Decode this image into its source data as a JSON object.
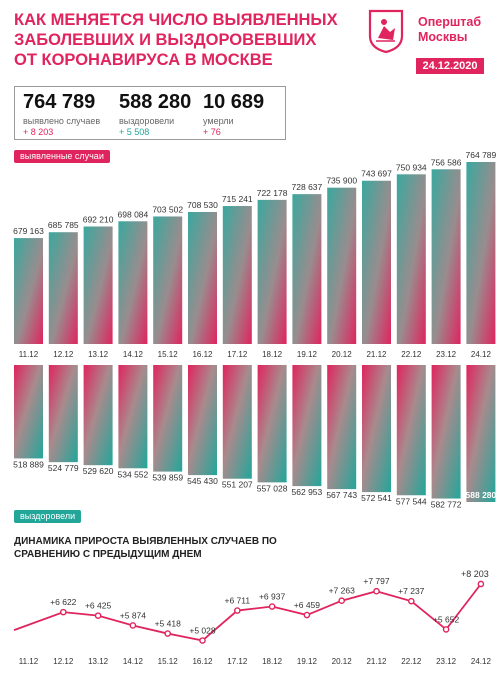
{
  "header": {
    "title_lines": [
      "Как меняется число выявленных",
      "заболевших и выздоровевших",
      "от коронавируса в Москве"
    ],
    "brand_lines": [
      "Оперштаб",
      "Москвы"
    ],
    "date": "24.12.2020",
    "logo_icon": "moscow-coat-of-arms-icon"
  },
  "stats": [
    {
      "value": "764 789",
      "label": "выявлено случаев",
      "delta": "+ 8 203",
      "color": "#e0245e"
    },
    {
      "value": "588 280",
      "label": "выздоровели",
      "delta": "+ 5 508",
      "color": "#22a69a"
    },
    {
      "value": "10 689",
      "label": "умерли",
      "delta": "+ 76",
      "color": "#e0245e"
    }
  ],
  "colors": {
    "accent_red": "#e0245e",
    "accent_teal": "#22a69a"
  },
  "chart_data": [
    {
      "type": "bar",
      "name": "выявленные случаи",
      "categories": [
        "11.12",
        "12.12",
        "13.12",
        "14.12",
        "15.12",
        "16.12",
        "17.12",
        "18.12",
        "19.12",
        "20.12",
        "21.12",
        "22.12",
        "23.12",
        "24.12"
      ],
      "values": [
        679163,
        685785,
        692210,
        698084,
        703502,
        708530,
        715241,
        722178,
        728637,
        735900,
        743697,
        750934,
        756586,
        764789
      ],
      "labels": [
        "679 163",
        "685 785",
        "692 210",
        "698 084",
        "703 502",
        "708 530",
        "715 241",
        "722 178",
        "728 637",
        "735 900",
        "743 697",
        "750 934",
        "756 586",
        "764 789"
      ]
    },
    {
      "type": "bar",
      "name": "выздоровели",
      "categories": [
        "11.12",
        "12.12",
        "13.12",
        "14.12",
        "15.12",
        "16.12",
        "17.12",
        "18.12",
        "19.12",
        "20.12",
        "21.12",
        "22.12",
        "23.12",
        "24.12"
      ],
      "values": [
        518889,
        524779,
        529620,
        534552,
        539859,
        545430,
        551207,
        557028,
        562953,
        567743,
        572541,
        577544,
        582772,
        588280
      ],
      "labels": [
        "518 889",
        "524 779",
        "529 620",
        "534 552",
        "539 859",
        "545 430",
        "551 207",
        "557 028",
        "562 953",
        "567 743",
        "572 541",
        "577 544",
        "582 772",
        "588 280"
      ]
    },
    {
      "type": "line",
      "title": "Динамика прироста выявленных случаев по сравнению с предыдущим днем",
      "categories": [
        "11.12",
        "12.12",
        "13.12",
        "14.12",
        "15.12",
        "16.12",
        "17.12",
        "18.12",
        "19.12",
        "20.12",
        "21.12",
        "22.12",
        "23.12",
        "24.12"
      ],
      "values": [
        null,
        6622,
        6425,
        5874,
        5418,
        5028,
        6711,
        6937,
        6459,
        7263,
        7797,
        7237,
        5652,
        8203
      ],
      "labels": [
        "",
        "+6 622",
        "+6 425",
        "+5 874",
        "+5 418",
        "+5 028",
        "+6 711",
        "+6 937",
        "+6 459",
        "+7 263",
        "+7 797",
        "+7 237",
        "+5 652",
        "+8 203"
      ]
    }
  ]
}
